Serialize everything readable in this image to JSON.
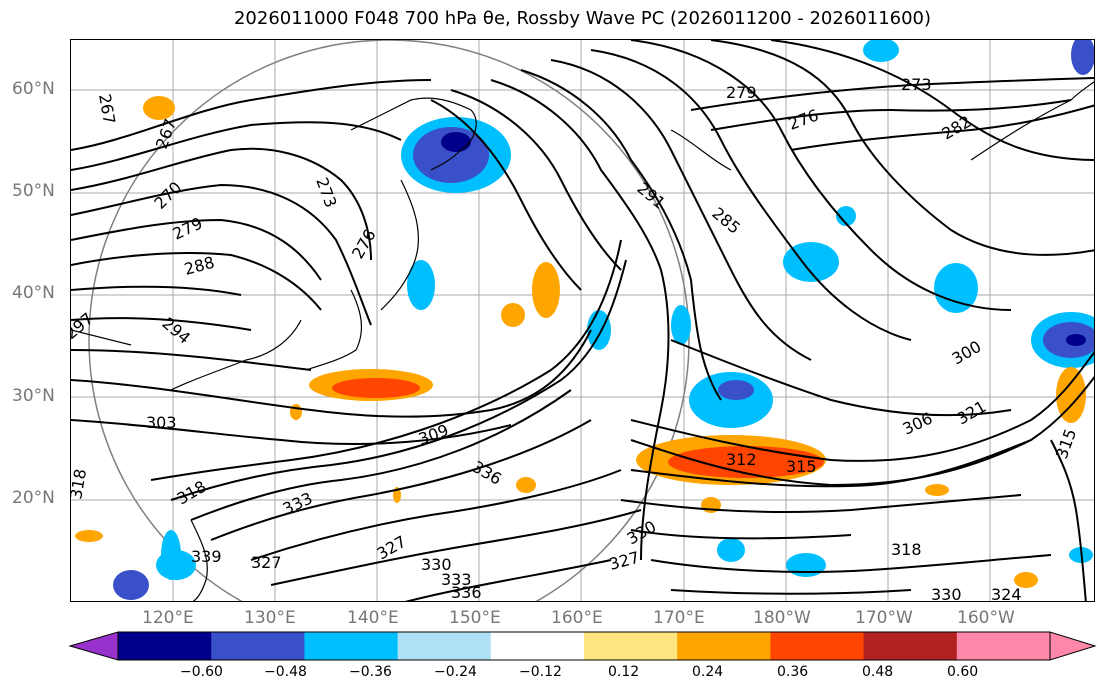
{
  "title": "2026011000 F048 700 hPa θe, Rossby Wave PC (2026011200 - 2026011600)",
  "lat_labels": [
    "60°N",
    "50°N",
    "40°N",
    "30°N",
    "20°N"
  ],
  "lon_labels": [
    "120°E",
    "130°E",
    "140°E",
    "150°E",
    "160°E",
    "170°E",
    "180°W",
    "170°W",
    "160°W"
  ],
  "contour_labels": [
    "267",
    "267",
    "270",
    "273",
    "276",
    "279",
    "279",
    "276",
    "273",
    "282",
    "285",
    "288",
    "291",
    "294",
    "297",
    "300",
    "303",
    "306",
    "309",
    "312",
    "315",
    "318",
    "318",
    "321",
    "327",
    "327",
    "330",
    "330",
    "333",
    "333",
    "336",
    "336",
    "339",
    "315",
    "318",
    "324",
    "327",
    "330"
  ],
  "colorbar": {
    "ticks": [
      "−0.60",
      "−0.48",
      "−0.36",
      "−0.24",
      "−0.12",
      "0.12",
      "0.24",
      "0.36",
      "0.48",
      "0.60"
    ],
    "colors": [
      "#9932cc",
      "#00008b",
      "#3a50c8",
      "#00bfff",
      "#b0e0f5",
      "#ffffff",
      "#ffe680",
      "#ffa500",
      "#ff4500",
      "#b22222",
      "#ff88aa",
      "#ff88aa"
    ],
    "extend_low_color": "#9932cc",
    "extend_high_color": "#ff88aa"
  }
}
